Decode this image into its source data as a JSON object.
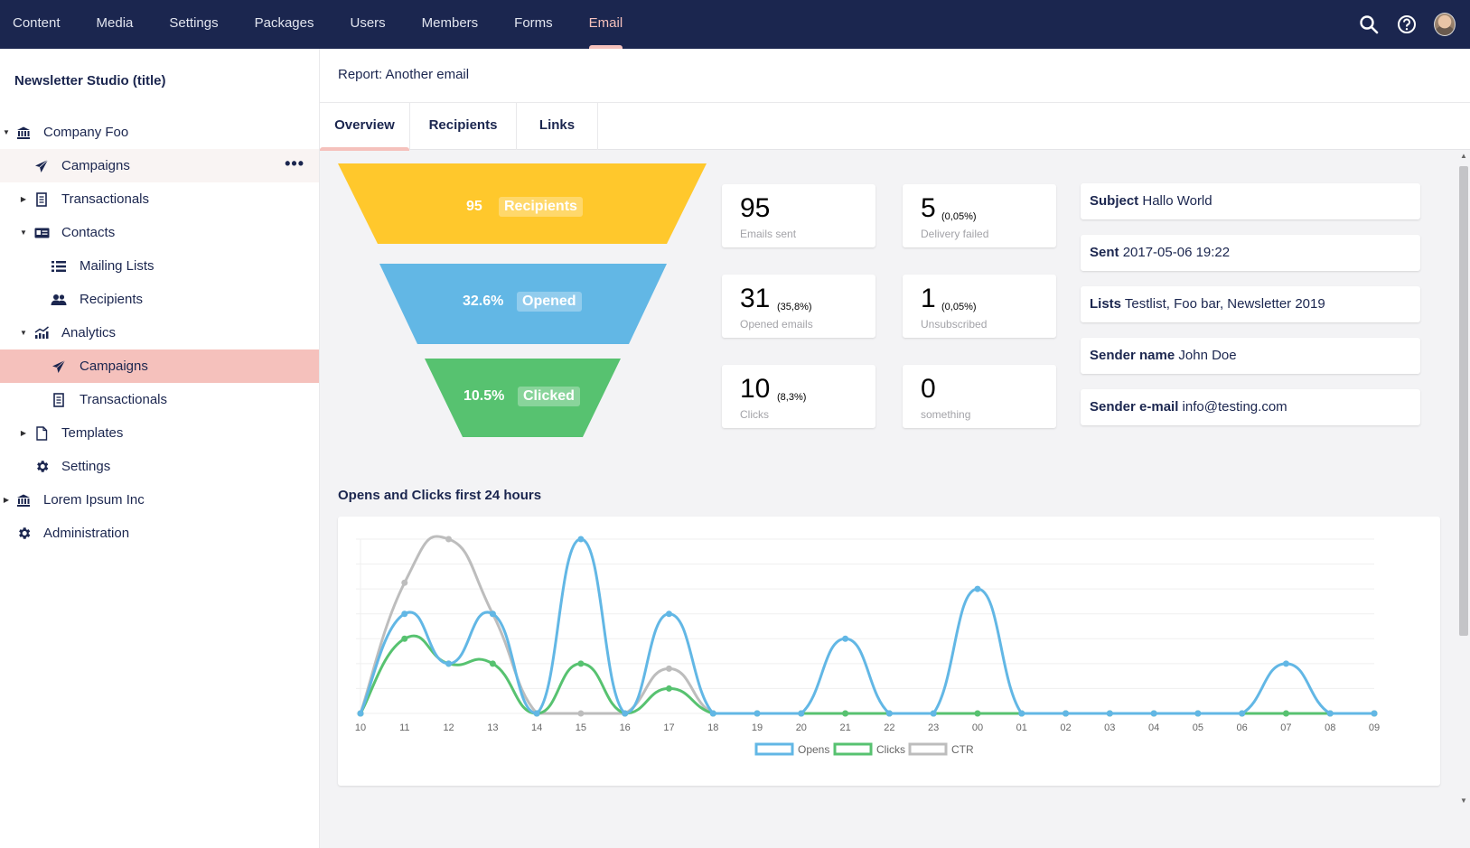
{
  "topnav": {
    "items": [
      "Content",
      "Media",
      "Settings",
      "Packages",
      "Users",
      "Members",
      "Forms",
      "Email"
    ],
    "active": "Email"
  },
  "sidebar": {
    "title": "Newsletter Studio (title)",
    "items": [
      {
        "label": "Company Foo",
        "icon": "bank-icon",
        "caret": "down"
      },
      {
        "label": "Campaigns",
        "icon": "paper-plane-icon"
      },
      {
        "label": "Transactionals",
        "icon": "receipt-icon",
        "caret": "right"
      },
      {
        "label": "Contacts",
        "icon": "contact-card-icon",
        "caret": "down"
      },
      {
        "label": "Mailing Lists",
        "icon": "list-icon"
      },
      {
        "label": "Recipients",
        "icon": "users-icon"
      },
      {
        "label": "Analytics",
        "icon": "chart-icon",
        "caret": "down"
      },
      {
        "label": "Campaigns",
        "icon": "paper-plane-icon"
      },
      {
        "label": "Transactionals",
        "icon": "receipt-icon"
      },
      {
        "label": "Templates",
        "icon": "document-icon",
        "caret": "right"
      },
      {
        "label": "Settings",
        "icon": "gear-icon"
      },
      {
        "label": "Lorem Ipsum Inc",
        "icon": "bank-icon",
        "caret": "right"
      },
      {
        "label": "Administration",
        "icon": "gear-icon"
      }
    ],
    "more_label": "•••"
  },
  "report": {
    "title": "Report: Another email",
    "tabs": [
      "Overview",
      "Recipients",
      "Links"
    ]
  },
  "funnel": [
    {
      "value": "95",
      "label": "Recipients",
      "color": "#ffc82c"
    },
    {
      "value": "32.6%",
      "label": "Opened",
      "color": "#62b7e5"
    },
    {
      "value": "10.5%",
      "label": "Clicked",
      "color": "#57c270"
    }
  ],
  "stats": [
    {
      "value": "95",
      "pct": "",
      "label": "Emails sent"
    },
    {
      "value": "5",
      "pct": "(0,05%)",
      "label": "Delivery failed"
    },
    {
      "value": "31",
      "pct": "(35,8%)",
      "label": "Opened emails"
    },
    {
      "value": "1",
      "pct": "(0,05%)",
      "label": "Unsubscribed"
    },
    {
      "value": "10",
      "pct": "(8,3%)",
      "label": "Clicks"
    },
    {
      "value": "0",
      "pct": "",
      "label": "something"
    }
  ],
  "info": [
    {
      "key": "Subject",
      "value": "Hallo World"
    },
    {
      "key": "Sent",
      "value": "2017-05-06 19:22"
    },
    {
      "key": "Lists",
      "value": "Testlist, Foo bar, Newsletter 2019"
    },
    {
      "key": "Sender name",
      "value": "John Doe"
    },
    {
      "key": "Sender e-mail",
      "value": "info@testing.com"
    }
  ],
  "chart_data": {
    "type": "line",
    "title": "Opens and Clicks first 24 hours",
    "x": [
      "10",
      "11",
      "12",
      "13",
      "14",
      "15",
      "16",
      "17",
      "18",
      "19",
      "20",
      "21",
      "22",
      "23",
      "00",
      "01",
      "02",
      "03",
      "04",
      "05",
      "06",
      "07",
      "08",
      "09"
    ],
    "ylim": [
      0,
      7
    ],
    "grid": true,
    "legend": "bottom",
    "series": [
      {
        "name": "Opens",
        "color": "#62b7e5",
        "values": [
          0,
          4,
          2,
          4,
          0,
          7,
          0,
          4,
          0,
          0,
          0,
          3,
          0,
          0,
          5,
          0,
          0,
          0,
          0,
          0,
          0,
          2,
          0,
          0
        ]
      },
      {
        "name": "Clicks",
        "color": "#57c270",
        "values": [
          0,
          3,
          2,
          2,
          0,
          2,
          0,
          1,
          0,
          0,
          0,
          0,
          0,
          0,
          0,
          0,
          0,
          0,
          0,
          0,
          0,
          0,
          0,
          0
        ]
      },
      {
        "name": "CTR",
        "color": "#bdbdbd",
        "values": [
          0,
          5.25,
          7,
          4,
          0,
          0,
          0,
          1.8,
          0,
          0,
          0,
          0,
          0,
          0,
          0,
          0,
          0,
          0,
          0,
          0,
          0,
          0,
          0,
          0
        ]
      }
    ]
  },
  "colors": {
    "nav_bg": "#1b264f",
    "accent": "#f5c1bc",
    "text": "#1b264f"
  }
}
